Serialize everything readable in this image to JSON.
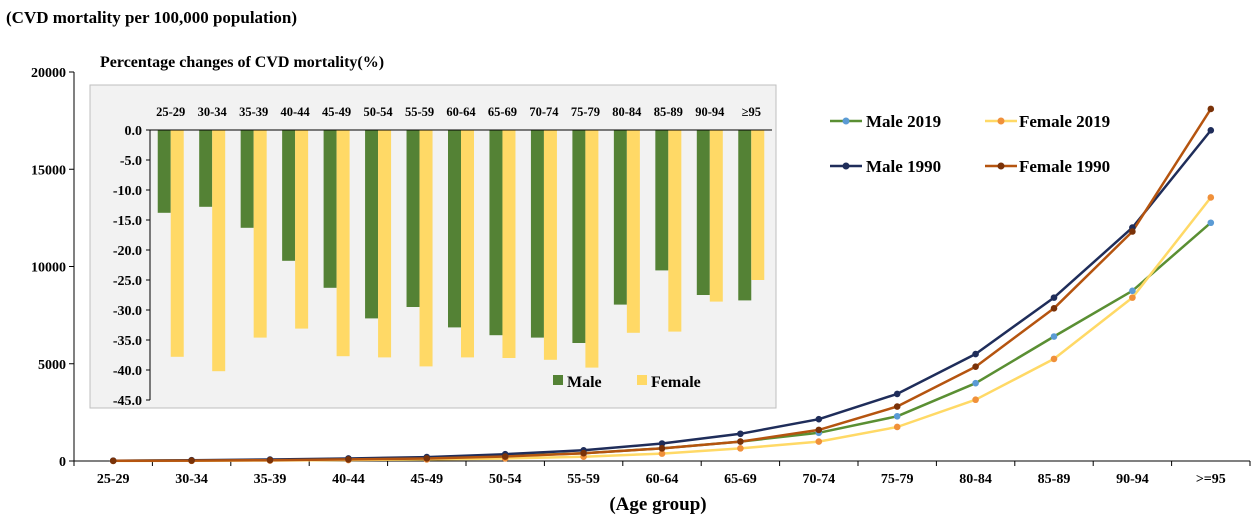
{
  "main_chart": {
    "ylabel": "(CVD mortality per 100,000 population)",
    "xlabel": "(Age group)",
    "y_ticks": [
      "0",
      "5000",
      "10000",
      "15000",
      "20000"
    ]
  },
  "inset_chart": {
    "title": "Percentage changes of CVD mortality(%)",
    "y_ticks": [
      "0.0",
      "-5.0",
      "-10.0",
      "-15.0",
      "-20.0",
      "-25.0",
      "-30.0",
      "-35.0",
      "-40.0",
      "-45.0"
    ],
    "legend": {
      "male": "Male",
      "female": "Female"
    }
  },
  "legend": {
    "male2019": "Male 2019",
    "female2019": "Female 2019",
    "male1990": "Male 1990",
    "female1990": "Female 1990"
  },
  "colors": {
    "male2019": "#5a8f33",
    "female2019": "#ffd966",
    "female2019_marker": "#f0903a",
    "male1990": "#1f2d5a",
    "female1990": "#b5540f",
    "inset_male": "#548235",
    "inset_female": "#ffd966",
    "inset_bg": "#f2f2f2"
  },
  "chart_data": [
    {
      "type": "line",
      "x": [
        "25-29",
        "30-34",
        "35-39",
        "40-44",
        "45-49",
        "50-54",
        "55-59",
        "60-64",
        "65-69",
        "70-74",
        "75-79",
        "80-84",
        "85-89",
        "90-94",
        ">=95"
      ],
      "ylim": [
        0,
        20000
      ],
      "series": [
        {
          "name": "Male 2019",
          "values": [
            10,
            25,
            50,
            90,
            150,
            250,
            400,
            650,
            1000,
            1450,
            2300,
            4000,
            6400,
            8750,
            12250
          ]
        },
        {
          "name": "Female 2019",
          "values": [
            5,
            10,
            25,
            50,
            80,
            130,
            220,
            380,
            650,
            1000,
            1750,
            3150,
            5250,
            8400,
            13550
          ]
        },
        {
          "name": "Male 1990",
          "values": [
            15,
            40,
            75,
            130,
            200,
            350,
            550,
            900,
            1400,
            2150,
            3450,
            5500,
            8400,
            12000,
            17000
          ]
        },
        {
          "name": "Female 1990",
          "values": [
            8,
            20,
            40,
            80,
            130,
            230,
            400,
            650,
            1000,
            1600,
            2800,
            4850,
            7850,
            11800,
            18100
          ]
        }
      ]
    },
    {
      "type": "bar",
      "title": "Percentage changes of CVD mortality(%)",
      "categories": [
        "25-29",
        "30-34",
        "35-39",
        "40-44",
        "45-49",
        "50-54",
        "55-59",
        "60-64",
        "65-69",
        "70-74",
        "75-79",
        "80-84",
        "85-89",
        "90-94",
        "≥95"
      ],
      "ylim": [
        -45,
        0
      ],
      "series": [
        {
          "name": "Male",
          "values": [
            -13.8,
            -12.8,
            -16.3,
            -21.8,
            -26.3,
            -31.4,
            -29.5,
            -32.9,
            -34.2,
            -34.6,
            -35.5,
            -29.1,
            -23.4,
            -27.5,
            -28.4
          ]
        },
        {
          "name": "Female",
          "values": [
            -37.8,
            -40.2,
            -34.6,
            -33.1,
            -37.7,
            -37.9,
            -39.4,
            -37.9,
            -38.0,
            -38.3,
            -39.6,
            -33.8,
            -33.6,
            -28.6,
            -25.0
          ]
        }
      ]
    }
  ]
}
